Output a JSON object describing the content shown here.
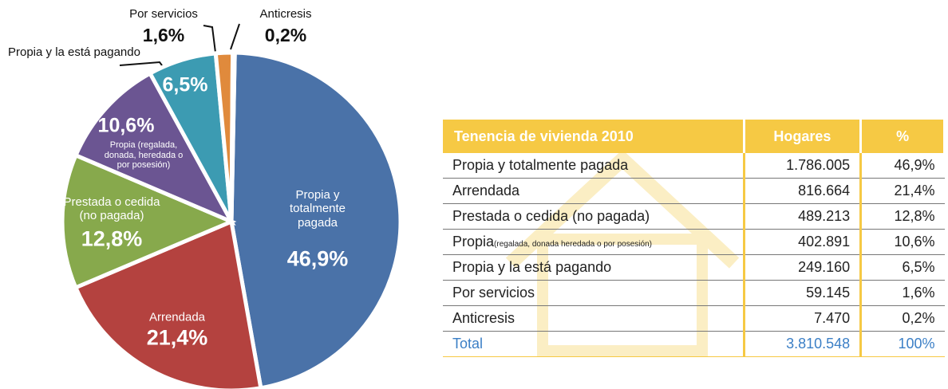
{
  "chart_data": {
    "type": "pie",
    "categories": [
      "Propia y totalmente pagada",
      "Arrendada",
      "Prestada o cedida (no pagada)",
      "Propia (regalada, donada, heredada o por posesión)",
      "Propia y la está pagando",
      "Por servicios",
      "Anticresis"
    ],
    "values": [
      46.9,
      21.4,
      12.8,
      10.6,
      6.5,
      1.6,
      0.2
    ],
    "value_labels": [
      "46,9%",
      "21,4%",
      "12,8%",
      "10,6%",
      "6,5%",
      "1,6%",
      "0,2%"
    ],
    "colors": [
      "#4a72a8",
      "#b4423f",
      "#87a94c",
      "#6b5592",
      "#3c9bb2",
      "#e08a3c",
      "#b8c8e0"
    ]
  },
  "table": {
    "header": [
      "Tenencia de vivienda 2010",
      "Hogares",
      "%"
    ],
    "rows": [
      {
        "label": "Propia y totalmente pagada",
        "hogares": "1.786.005",
        "pct": "46,9%"
      },
      {
        "label": "Arrendada",
        "hogares": "816.664",
        "pct": "21,4%"
      },
      {
        "label": "Prestada o cedida (no pagada)",
        "hogares": "489.213",
        "pct": "12,8%"
      },
      {
        "label": "Propia",
        "note": "(regalada, donada heredada o por posesión)",
        "hogares": "402.891",
        "pct": "10,6%"
      },
      {
        "label": "Propia y la está pagando",
        "hogares": "249.160",
        "pct": "6,5%"
      },
      {
        "label": "Por servicios",
        "hogares": "59.145",
        "pct": "1,6%"
      },
      {
        "label": "Anticresis",
        "hogares": "7.470",
        "pct": "0,2%"
      }
    ],
    "total": {
      "label": "Total",
      "hogares": "3.810.548",
      "pct": "100%"
    }
  }
}
